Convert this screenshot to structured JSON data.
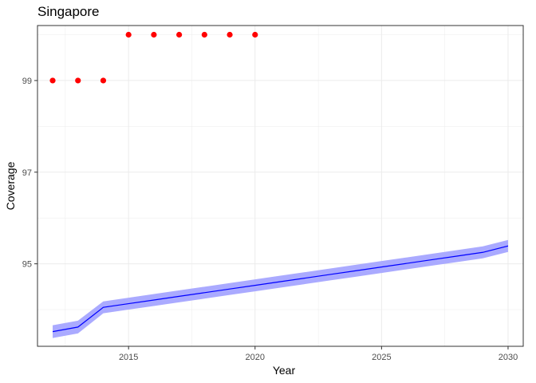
{
  "chart_data": {
    "type": "line",
    "title": "Singapore",
    "xlabel": "Year",
    "ylabel": "Coverage",
    "xlim": [
      2011.4,
      2030.6
    ],
    "ylim": [
      93.2,
      100.2
    ],
    "x_ticks": [
      2015,
      2020,
      2025,
      2030
    ],
    "y_ticks": [
      95,
      97,
      99
    ],
    "grid": true,
    "legend": "none",
    "series": [
      {
        "kind": "points",
        "color": "#ff0000",
        "points": [
          {
            "x": 2012,
            "y": 99
          },
          {
            "x": 2013,
            "y": 99
          },
          {
            "x": 2014,
            "y": 99
          },
          {
            "x": 2015,
            "y": 100
          },
          {
            "x": 2016,
            "y": 100
          },
          {
            "x": 2017,
            "y": 100
          },
          {
            "x": 2018,
            "y": 100
          },
          {
            "x": 2019,
            "y": 100
          },
          {
            "x": 2020,
            "y": 100
          }
        ]
      },
      {
        "kind": "line",
        "color": "#0000ff",
        "points": [
          {
            "x": 2012,
            "y": 93.52
          },
          {
            "x": 2013,
            "y": 93.62
          },
          {
            "x": 2014,
            "y": 94.05
          },
          {
            "x": 2015,
            "y": 94.13
          },
          {
            "x": 2016,
            "y": 94.21
          },
          {
            "x": 2017,
            "y": 94.29
          },
          {
            "x": 2018,
            "y": 94.37
          },
          {
            "x": 2019,
            "y": 94.45
          },
          {
            "x": 2020,
            "y": 94.53
          },
          {
            "x": 2021,
            "y": 94.61
          },
          {
            "x": 2022,
            "y": 94.69
          },
          {
            "x": 2023,
            "y": 94.77
          },
          {
            "x": 2024,
            "y": 94.85
          },
          {
            "x": 2025,
            "y": 94.93
          },
          {
            "x": 2026,
            "y": 95.01
          },
          {
            "x": 2027,
            "y": 95.09
          },
          {
            "x": 2028,
            "y": 95.17
          },
          {
            "x": 2029,
            "y": 95.25
          },
          {
            "x": 2030,
            "y": 95.39
          }
        ]
      },
      {
        "kind": "band",
        "color": "#aaaaff",
        "points": [
          {
            "x": 2012,
            "lo": 93.38,
            "hi": 93.66
          },
          {
            "x": 2013,
            "lo": 93.48,
            "hi": 93.76
          },
          {
            "x": 2014,
            "lo": 93.92,
            "hi": 94.18
          },
          {
            "x": 2015,
            "lo": 94.0,
            "hi": 94.26
          },
          {
            "x": 2016,
            "lo": 94.08,
            "hi": 94.34
          },
          {
            "x": 2017,
            "lo": 94.16,
            "hi": 94.42
          },
          {
            "x": 2018,
            "lo": 94.24,
            "hi": 94.5
          },
          {
            "x": 2019,
            "lo": 94.32,
            "hi": 94.58
          },
          {
            "x": 2020,
            "lo": 94.4,
            "hi": 94.66
          },
          {
            "x": 2021,
            "lo": 94.48,
            "hi": 94.74
          },
          {
            "x": 2022,
            "lo": 94.56,
            "hi": 94.82
          },
          {
            "x": 2023,
            "lo": 94.64,
            "hi": 94.9
          },
          {
            "x": 2024,
            "lo": 94.72,
            "hi": 94.98
          },
          {
            "x": 2025,
            "lo": 94.8,
            "hi": 95.06
          },
          {
            "x": 2026,
            "lo": 94.88,
            "hi": 95.14
          },
          {
            "x": 2027,
            "lo": 94.96,
            "hi": 95.22
          },
          {
            "x": 2028,
            "lo": 95.04,
            "hi": 95.3
          },
          {
            "x": 2029,
            "lo": 95.12,
            "hi": 95.38
          },
          {
            "x": 2030,
            "lo": 95.26,
            "hi": 95.52
          }
        ]
      }
    ]
  }
}
